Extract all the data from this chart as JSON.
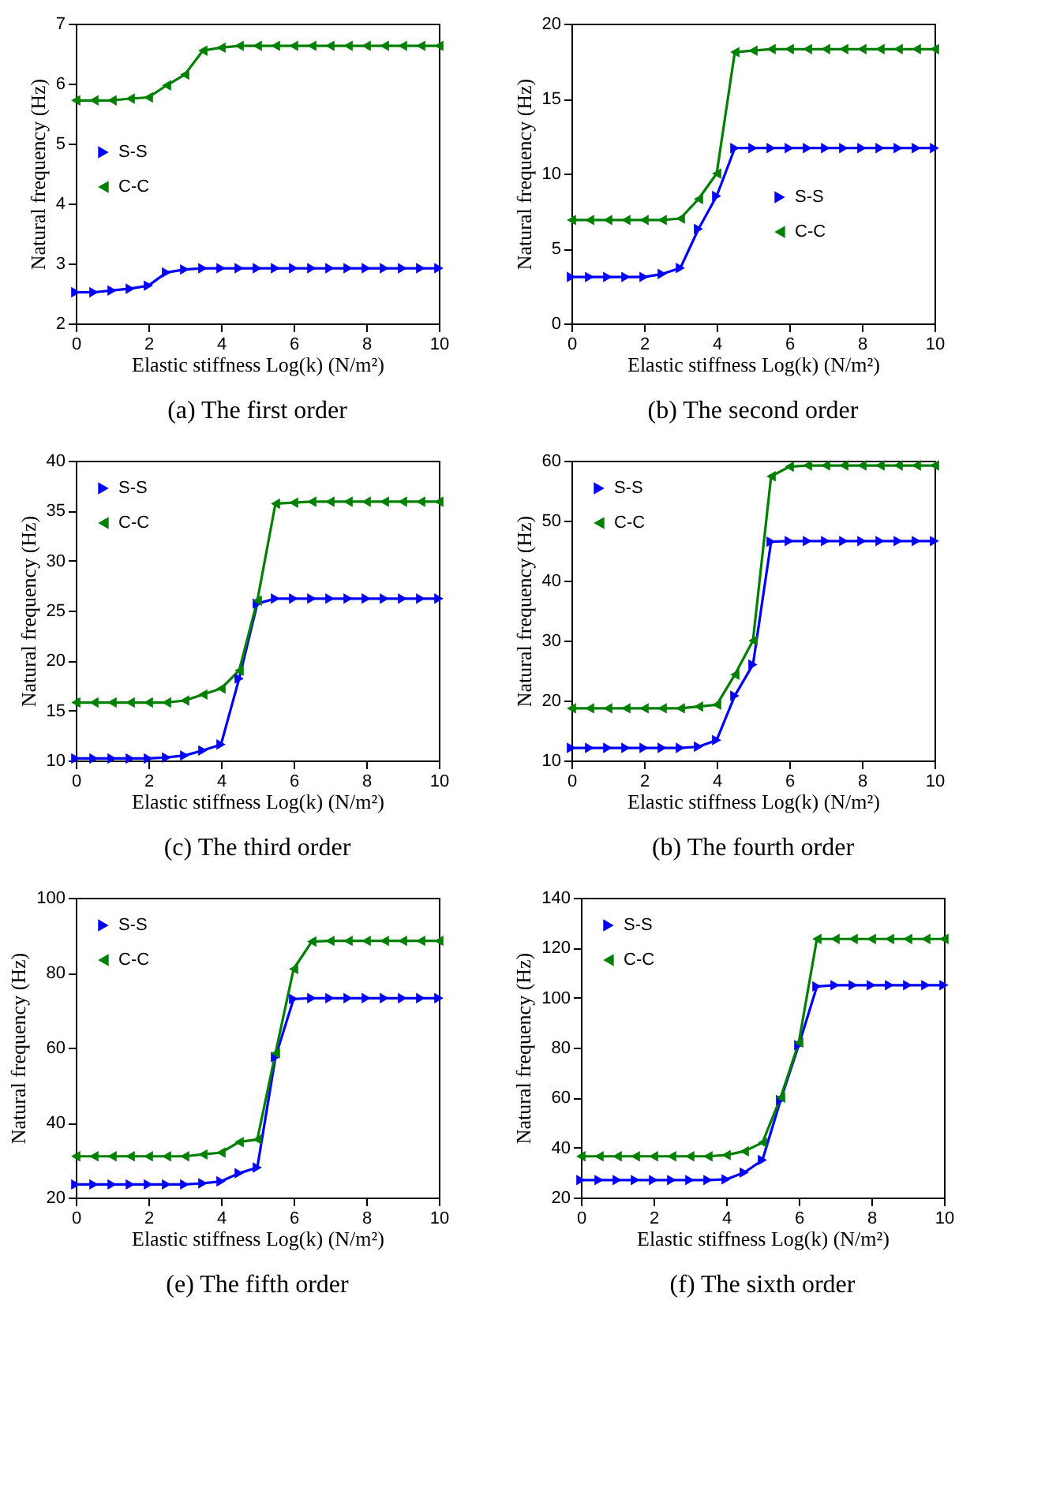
{
  "chart_data": [
    {
      "type": "line",
      "title": "(a) The first order",
      "xlabel": "Elastic stiffness Log(k) (N/m²)",
      "ylabel": "Natural frequency (Hz)",
      "x": [
        0,
        0.5,
        1,
        1.5,
        2,
        2.5,
        3,
        3.5,
        4,
        4.5,
        5,
        5.5,
        6,
        6.5,
        7,
        7.5,
        8,
        8.5,
        9,
        9.5,
        10
      ],
      "xlim": [
        0,
        10
      ],
      "xticks": [
        0,
        2,
        4,
        6,
        8,
        10
      ],
      "ylim": [
        2,
        7
      ],
      "yticks": [
        2,
        3,
        4,
        5,
        6,
        7
      ],
      "grid": false,
      "legend": "left",
      "line_style": "solid",
      "series": [
        {
          "name": "S-S",
          "color": "#0000ff",
          "marker": "triangle-right",
          "values": [
            2.52,
            2.52,
            2.55,
            2.58,
            2.63,
            2.85,
            2.9,
            2.92,
            2.92,
            2.92,
            2.92,
            2.92,
            2.92,
            2.92,
            2.92,
            2.92,
            2.92,
            2.92,
            2.92,
            2.92,
            2.92
          ]
        },
        {
          "name": "C-C",
          "color": "#008000",
          "marker": "triangle-left",
          "values": [
            5.72,
            5.72,
            5.72,
            5.75,
            5.77,
            5.97,
            6.15,
            6.55,
            6.6,
            6.63,
            6.63,
            6.63,
            6.63,
            6.63,
            6.63,
            6.63,
            6.63,
            6.63,
            6.63,
            6.63,
            6.63
          ]
        }
      ]
    },
    {
      "type": "line",
      "title": "(b) The second order",
      "xlabel": "Elastic stiffness Log(k) (N/m²)",
      "ylabel": "Natural frequency (Hz)",
      "x": [
        0,
        0.5,
        1,
        1.5,
        2,
        2.5,
        3,
        3.5,
        4,
        4.5,
        5,
        5.5,
        6,
        6.5,
        7,
        7.5,
        8,
        8.5,
        9,
        9.5,
        10
      ],
      "xlim": [
        0,
        10
      ],
      "xticks": [
        0,
        2,
        4,
        6,
        8,
        10
      ],
      "ylim": [
        0,
        20
      ],
      "yticks": [
        0,
        5,
        10,
        15,
        20
      ],
      "grid": false,
      "legend": "bottom right",
      "line_style": "solid",
      "series": [
        {
          "name": "S-S",
          "color": "#0000ff",
          "marker": "triangle-right",
          "values": [
            3.1,
            3.1,
            3.1,
            3.1,
            3.1,
            3.3,
            3.7,
            6.3,
            8.5,
            11.7,
            11.7,
            11.7,
            11.7,
            11.7,
            11.7,
            11.7,
            11.7,
            11.7,
            11.7,
            11.7,
            11.7
          ]
        },
        {
          "name": "C-C",
          "color": "#008000",
          "marker": "triangle-left",
          "values": [
            6.9,
            6.9,
            6.9,
            6.9,
            6.9,
            6.9,
            7.0,
            8.3,
            10.0,
            18.1,
            18.2,
            18.3,
            18.3,
            18.3,
            18.3,
            18.3,
            18.3,
            18.3,
            18.3,
            18.3,
            18.3
          ]
        }
      ]
    },
    {
      "type": "line",
      "title": "(c) The third order",
      "xlabel": "Elastic stiffness Log(k) (N/m²)",
      "ylabel": "Natural frequency (Hz)",
      "x": [
        0,
        0.5,
        1,
        1.5,
        2,
        2.5,
        3,
        3.5,
        4,
        4.5,
        5,
        5.5,
        6,
        6.5,
        7,
        7.5,
        8,
        8.5,
        9,
        9.5,
        10
      ],
      "xlim": [
        0,
        10
      ],
      "xticks": [
        0,
        2,
        4,
        6,
        8,
        10
      ],
      "ylim": [
        10,
        40
      ],
      "yticks": [
        10,
        15,
        20,
        25,
        30,
        35,
        40
      ],
      "grid": false,
      "legend": "top left",
      "line_style": "solid",
      "series": [
        {
          "name": "S-S",
          "color": "#0000ff",
          "marker": "triangle-right",
          "values": [
            10.2,
            10.2,
            10.2,
            10.2,
            10.2,
            10.3,
            10.5,
            11.0,
            11.6,
            18.2,
            25.7,
            26.2,
            26.2,
            26.2,
            26.2,
            26.2,
            26.2,
            26.2,
            26.2,
            26.2,
            26.2
          ]
        },
        {
          "name": "C-C",
          "color": "#008000",
          "marker": "triangle-left",
          "values": [
            15.8,
            15.8,
            15.8,
            15.8,
            15.8,
            15.8,
            16.0,
            16.6,
            17.2,
            19.0,
            26.0,
            35.7,
            35.8,
            35.9,
            35.9,
            35.9,
            35.9,
            35.9,
            35.9,
            35.9,
            35.9
          ]
        }
      ]
    },
    {
      "type": "line",
      "title": "(b) The fourth order",
      "xlabel": "Elastic stiffness Log(k) (N/m²)",
      "ylabel": "Natural frequency (Hz)",
      "x": [
        0,
        0.5,
        1,
        1.5,
        2,
        2.5,
        3,
        3.5,
        4,
        4.5,
        5,
        5.5,
        6,
        6.5,
        7,
        7.5,
        8,
        8.5,
        9,
        9.5,
        10
      ],
      "xlim": [
        0,
        10
      ],
      "xticks": [
        0,
        2,
        4,
        6,
        8,
        10
      ],
      "ylim": [
        10,
        60
      ],
      "yticks": [
        10,
        20,
        30,
        40,
        50,
        60
      ],
      "grid": false,
      "legend": "top left",
      "line_style": "solid",
      "series": [
        {
          "name": "S-S",
          "color": "#0000ff",
          "marker": "triangle-right",
          "values": [
            12.1,
            12.1,
            12.1,
            12.1,
            12.1,
            12.1,
            12.1,
            12.3,
            13.4,
            20.8,
            26.0,
            46.5,
            46.6,
            46.6,
            46.6,
            46.6,
            46.6,
            46.6,
            46.6,
            46.6,
            46.6
          ]
        },
        {
          "name": "C-C",
          "color": "#008000",
          "marker": "triangle-left",
          "values": [
            18.7,
            18.7,
            18.7,
            18.7,
            18.7,
            18.7,
            18.7,
            19.0,
            19.3,
            24.3,
            30.0,
            57.4,
            59.0,
            59.2,
            59.2,
            59.2,
            59.2,
            59.2,
            59.2,
            59.2,
            59.2
          ]
        }
      ]
    },
    {
      "type": "line",
      "title": "(e) The fifth order",
      "xlabel": "Elastic stiffness Log(k) (N/m²)",
      "ylabel": "Natural frequency (Hz)",
      "x": [
        0,
        0.5,
        1,
        1.5,
        2,
        2.5,
        3,
        3.5,
        4,
        4.5,
        5,
        5.5,
        6,
        6.5,
        7,
        7.5,
        8,
        8.5,
        9,
        9.5,
        10
      ],
      "xlim": [
        0,
        10
      ],
      "xticks": [
        0,
        2,
        4,
        6,
        8,
        10
      ],
      "ylim": [
        20,
        100
      ],
      "yticks": [
        20,
        40,
        60,
        80,
        100
      ],
      "grid": false,
      "legend": "top left",
      "line_style": "solid",
      "series": [
        {
          "name": "S-S",
          "color": "#0000ff",
          "marker": "triangle-right",
          "values": [
            23.5,
            23.5,
            23.5,
            23.5,
            23.5,
            23.5,
            23.5,
            23.8,
            24.3,
            26.5,
            28.0,
            57.5,
            73.0,
            73.2,
            73.2,
            73.2,
            73.2,
            73.2,
            73.2,
            73.2,
            73.2
          ]
        },
        {
          "name": "C-C",
          "color": "#008000",
          "marker": "triangle-left",
          "values": [
            31.0,
            31.0,
            31.0,
            31.0,
            31.0,
            31.0,
            31.0,
            31.5,
            32.0,
            34.8,
            35.5,
            58.5,
            81.0,
            88.3,
            88.5,
            88.5,
            88.5,
            88.5,
            88.5,
            88.5,
            88.5
          ]
        }
      ]
    },
    {
      "type": "line",
      "title": "(f) The sixth order",
      "xlabel": "Elastic stiffness Log(k) (N/m²)",
      "ylabel": "Natural frequency (Hz)",
      "x": [
        0,
        0.5,
        1,
        1.5,
        2,
        2.5,
        3,
        3.5,
        4,
        4.5,
        5,
        5.5,
        6,
        6.5,
        7,
        7.5,
        8,
        8.5,
        9,
        9.5,
        10
      ],
      "xlim": [
        0,
        10
      ],
      "xticks": [
        0,
        2,
        4,
        6,
        8,
        10
      ],
      "ylim": [
        20,
        140
      ],
      "yticks": [
        20,
        40,
        60,
        80,
        100,
        120,
        140
      ],
      "grid": false,
      "legend": "top left",
      "line_style": "solid",
      "series": [
        {
          "name": "S-S",
          "color": "#0000ff",
          "marker": "triangle-right",
          "values": [
            27,
            27,
            27,
            27,
            27,
            27,
            27,
            27,
            27.3,
            30,
            35,
            59,
            81,
            104.5,
            105,
            105,
            105,
            105,
            105,
            105,
            105
          ]
        },
        {
          "name": "C-C",
          "color": "#008000",
          "marker": "triangle-left",
          "values": [
            36.5,
            36.5,
            36.5,
            36.5,
            36.5,
            36.5,
            36.5,
            36.5,
            37,
            38.5,
            42,
            60,
            82,
            123.5,
            123.5,
            123.5,
            123.5,
            123.5,
            123.5,
            123.5,
            123.5
          ]
        }
      ]
    }
  ]
}
